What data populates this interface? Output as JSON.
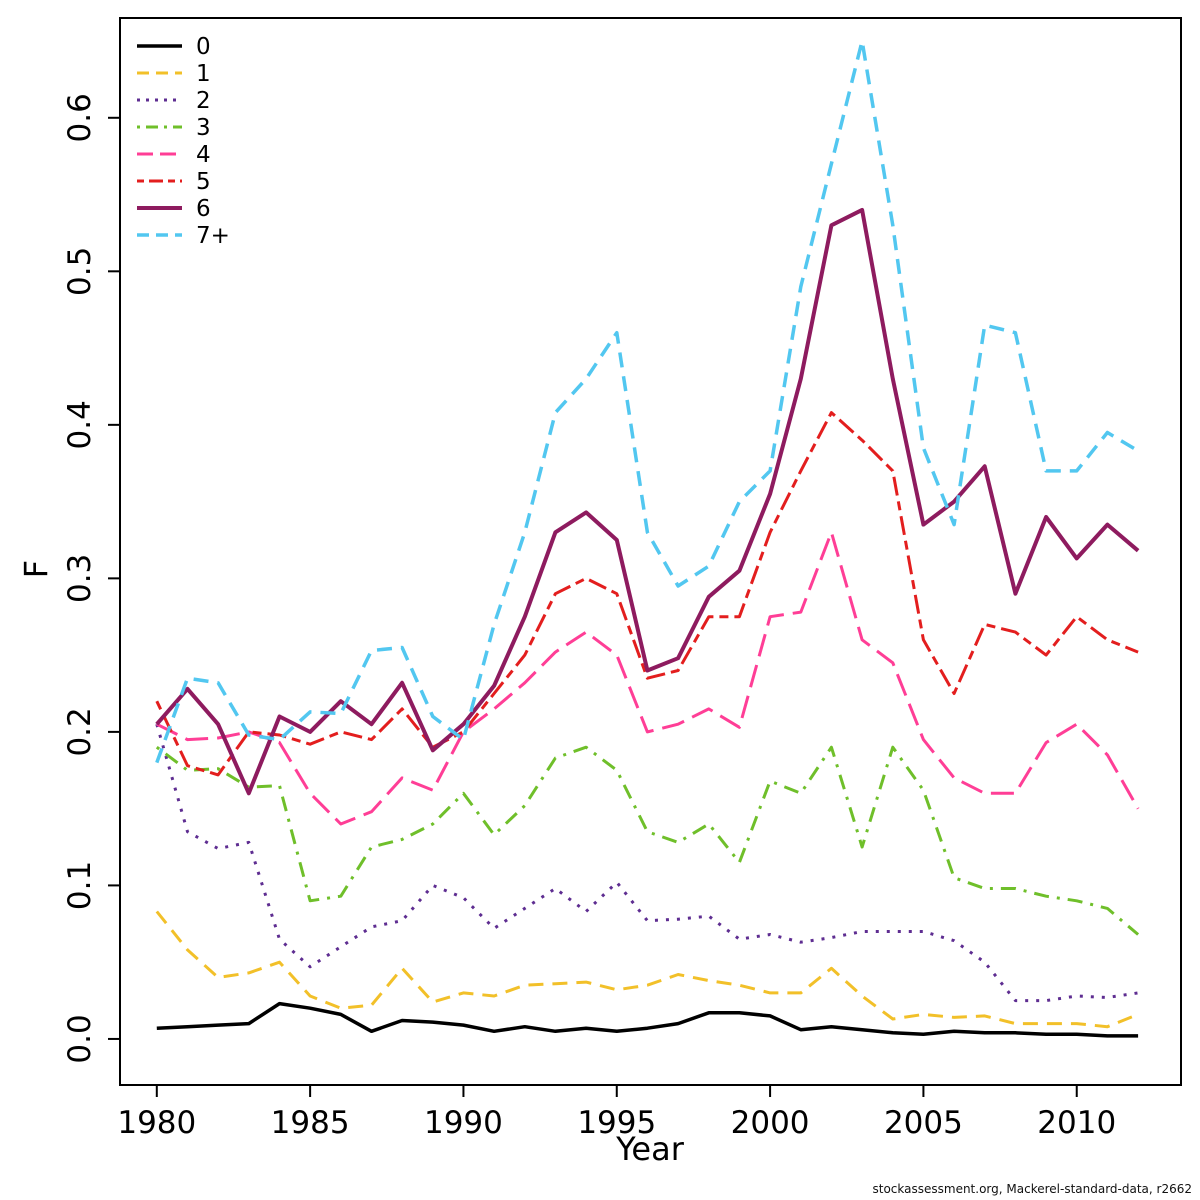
{
  "footer": {
    "text": "stockassessment.org, Mackerel-standard-data, r2662"
  },
  "chart_data": {
    "type": "line",
    "title": "",
    "xlabel": "Year",
    "ylabel": "F",
    "grid": false,
    "legend_position": "top-left",
    "x_ticks": [
      1980,
      1985,
      1990,
      1995,
      2000,
      2005,
      2010
    ],
    "y_ticks": [
      0.0,
      0.1,
      0.2,
      0.3,
      0.4,
      0.5,
      0.6
    ],
    "xlim": [
      1978.8,
      2013.4
    ],
    "ylim": [
      -0.03,
      0.665
    ],
    "x": [
      1980,
      1981,
      1982,
      1983,
      1984,
      1985,
      1986,
      1987,
      1988,
      1989,
      1990,
      1991,
      1992,
      1993,
      1994,
      1995,
      1996,
      1997,
      1998,
      1999,
      2000,
      2001,
      2002,
      2003,
      2004,
      2005,
      2006,
      2007,
      2008,
      2009,
      2010,
      2011,
      2012
    ],
    "series": [
      {
        "name": "0",
        "color": "#000000",
        "dash": "solid",
        "width": 3.5,
        "values": [
          0.007,
          0.008,
          0.009,
          0.01,
          0.023,
          0.02,
          0.016,
          0.005,
          0.012,
          0.011,
          0.009,
          0.005,
          0.008,
          0.005,
          0.007,
          0.005,
          0.007,
          0.01,
          0.017,
          0.017,
          0.015,
          0.006,
          0.008,
          0.006,
          0.004,
          0.003,
          0.005,
          0.004,
          0.004,
          0.003,
          0.003,
          0.002,
          0.002
        ]
      },
      {
        "name": "1",
        "color": "#F2C029",
        "dash": "dashed",
        "width": 3,
        "values": [
          0.083,
          0.058,
          0.04,
          0.043,
          0.05,
          0.028,
          0.02,
          0.022,
          0.046,
          0.024,
          0.03,
          0.028,
          0.035,
          0.036,
          0.037,
          0.032,
          0.035,
          0.042,
          0.038,
          0.035,
          0.03,
          0.03,
          0.046,
          0.028,
          0.013,
          0.016,
          0.014,
          0.015,
          0.01,
          0.01,
          0.01,
          0.008,
          0.016
        ]
      },
      {
        "name": "2",
        "color": "#5E2D91",
        "dash": "dotted",
        "width": 3,
        "values": [
          0.205,
          0.135,
          0.124,
          0.128,
          0.065,
          0.047,
          0.06,
          0.073,
          0.077,
          0.1,
          0.092,
          0.072,
          0.085,
          0.098,
          0.083,
          0.102,
          0.077,
          0.078,
          0.08,
          0.065,
          0.068,
          0.063,
          0.066,
          0.07,
          0.07,
          0.07,
          0.064,
          0.05,
          0.025,
          0.025,
          0.028,
          0.027,
          0.03
        ]
      },
      {
        "name": "3",
        "color": "#6FBF2A",
        "dash": "dotdash",
        "width": 3,
        "values": [
          0.19,
          0.175,
          0.176,
          0.164,
          0.165,
          0.09,
          0.093,
          0.125,
          0.13,
          0.14,
          0.16,
          0.133,
          0.152,
          0.183,
          0.19,
          0.175,
          0.135,
          0.128,
          0.14,
          0.115,
          0.168,
          0.16,
          0.19,
          0.125,
          0.19,
          0.162,
          0.105,
          0.098,
          0.098,
          0.093,
          0.09,
          0.085,
          0.068
        ]
      },
      {
        "name": "4",
        "color": "#FF3E96",
        "dash": "longdash",
        "width": 3,
        "values": [
          0.205,
          0.195,
          0.196,
          0.2,
          0.193,
          0.16,
          0.14,
          0.148,
          0.17,
          0.162,
          0.2,
          0.215,
          0.232,
          0.252,
          0.265,
          0.25,
          0.2,
          0.205,
          0.215,
          0.203,
          0.275,
          0.278,
          0.33,
          0.26,
          0.245,
          0.195,
          0.17,
          0.16,
          0.16,
          0.193,
          0.205,
          0.185,
          0.15
        ]
      },
      {
        "name": "5",
        "color": "#E31E1E",
        "dash": "twodash",
        "width": 3,
        "values": [
          0.22,
          0.178,
          0.172,
          0.2,
          0.198,
          0.192,
          0.2,
          0.195,
          0.215,
          0.19,
          0.2,
          0.225,
          0.25,
          0.29,
          0.3,
          0.29,
          0.235,
          0.24,
          0.275,
          0.275,
          0.33,
          0.37,
          0.408,
          0.39,
          0.37,
          0.26,
          0.225,
          0.27,
          0.265,
          0.25,
          0.275,
          0.26,
          0.252
        ]
      },
      {
        "name": "6",
        "color": "#8E1B5F",
        "dash": "solid",
        "width": 4,
        "values": [
          0.205,
          0.228,
          0.205,
          0.16,
          0.21,
          0.2,
          0.22,
          0.205,
          0.232,
          0.188,
          0.205,
          0.23,
          0.275,
          0.33,
          0.343,
          0.325,
          0.24,
          0.248,
          0.288,
          0.305,
          0.355,
          0.43,
          0.53,
          0.54,
          0.43,
          0.335,
          0.35,
          0.373,
          0.29,
          0.34,
          0.313,
          0.335,
          0.318
        ]
      },
      {
        "name": "7+",
        "color": "#52C7F0",
        "dash": "dashed",
        "width": 3.5,
        "values": [
          0.18,
          0.235,
          0.232,
          0.198,
          0.195,
          0.213,
          0.212,
          0.253,
          0.255,
          0.21,
          0.195,
          0.27,
          0.33,
          0.408,
          0.43,
          0.46,
          0.33,
          0.295,
          0.308,
          0.35,
          0.37,
          0.49,
          0.57,
          0.65,
          0.53,
          0.385,
          0.335,
          0.465,
          0.46,
          0.37,
          0.37,
          0.395,
          0.383
        ]
      }
    ]
  }
}
